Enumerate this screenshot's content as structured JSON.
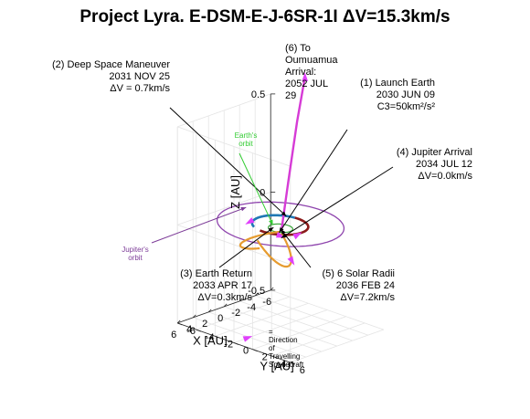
{
  "chart_data": {
    "type": "line",
    "title": "Project Lyra. E-DSM-E-J-6SR-1I ΔV=15.3km/s",
    "xlabel": "X [AU]",
    "ylabel": "Y [AU]",
    "zlabel": "Z [AU]",
    "xlim": [
      -6,
      6
    ],
    "ylim": [
      -6,
      6
    ],
    "zlim": [
      -0.5,
      0.5
    ],
    "x_ticks": [
      "-6",
      "-4",
      "-2",
      "0",
      "2",
      "4",
      "6"
    ],
    "y_ticks": [
      "-6",
      "-4",
      "-2",
      "0",
      "2",
      "4",
      "6"
    ],
    "z_ticks": [
      "-0.5",
      "0",
      "0.5"
    ],
    "grid": true,
    "colors": {
      "earth_orbit": "#2ca02c",
      "jupiter_orbit": "#8e44ad",
      "leg_launch_to_dsm": "#1f77b4",
      "leg_dsm_to_earth": "#8b1a1a",
      "leg_earth_to_jupiter": "#e69b2f",
      "leg_to_oumuamua": "#d63bd6",
      "direction_arrows": "#e040fb",
      "orbit_label_earth": "#33cc33",
      "orbit_label_jupiter": "#7d3c98"
    },
    "annotations": [
      {
        "id": "dsm",
        "lines": [
          "(2) Deep Space Maneuver",
          "2031 NOV 25",
          "ΔV = 0.7km/s"
        ]
      },
      {
        "id": "to_oumuamua",
        "lines": [
          "(6) To",
          "Oumuamua",
          "Arrival:",
          "2052 JUL",
          "29"
        ]
      },
      {
        "id": "launch",
        "lines": [
          "(1) Launch Earth",
          "2030 JUN 09",
          "C3=50km²/s²"
        ]
      },
      {
        "id": "jupiter",
        "lines": [
          "(4) Jupiter Arrival",
          "2034 JUL 12",
          "ΔV=0.0km/s"
        ]
      },
      {
        "id": "earth_return",
        "lines": [
          "(3) Earth Return",
          "2033 APR 17",
          "ΔV=0.3km/s"
        ]
      },
      {
        "id": "solar",
        "lines": [
          "(5) 6 Solar Radii",
          "2036 FEB 24",
          "ΔV=7.2km/s"
        ]
      }
    ],
    "orbit_labels": {
      "earth": [
        "Earth's",
        "orbit"
      ],
      "jupiter": [
        "Jupiter's",
        "orbit"
      ]
    },
    "legend": {
      "lines": [
        "=",
        "Direction",
        "of",
        "Travelling",
        "Spacecraft"
      ]
    }
  }
}
